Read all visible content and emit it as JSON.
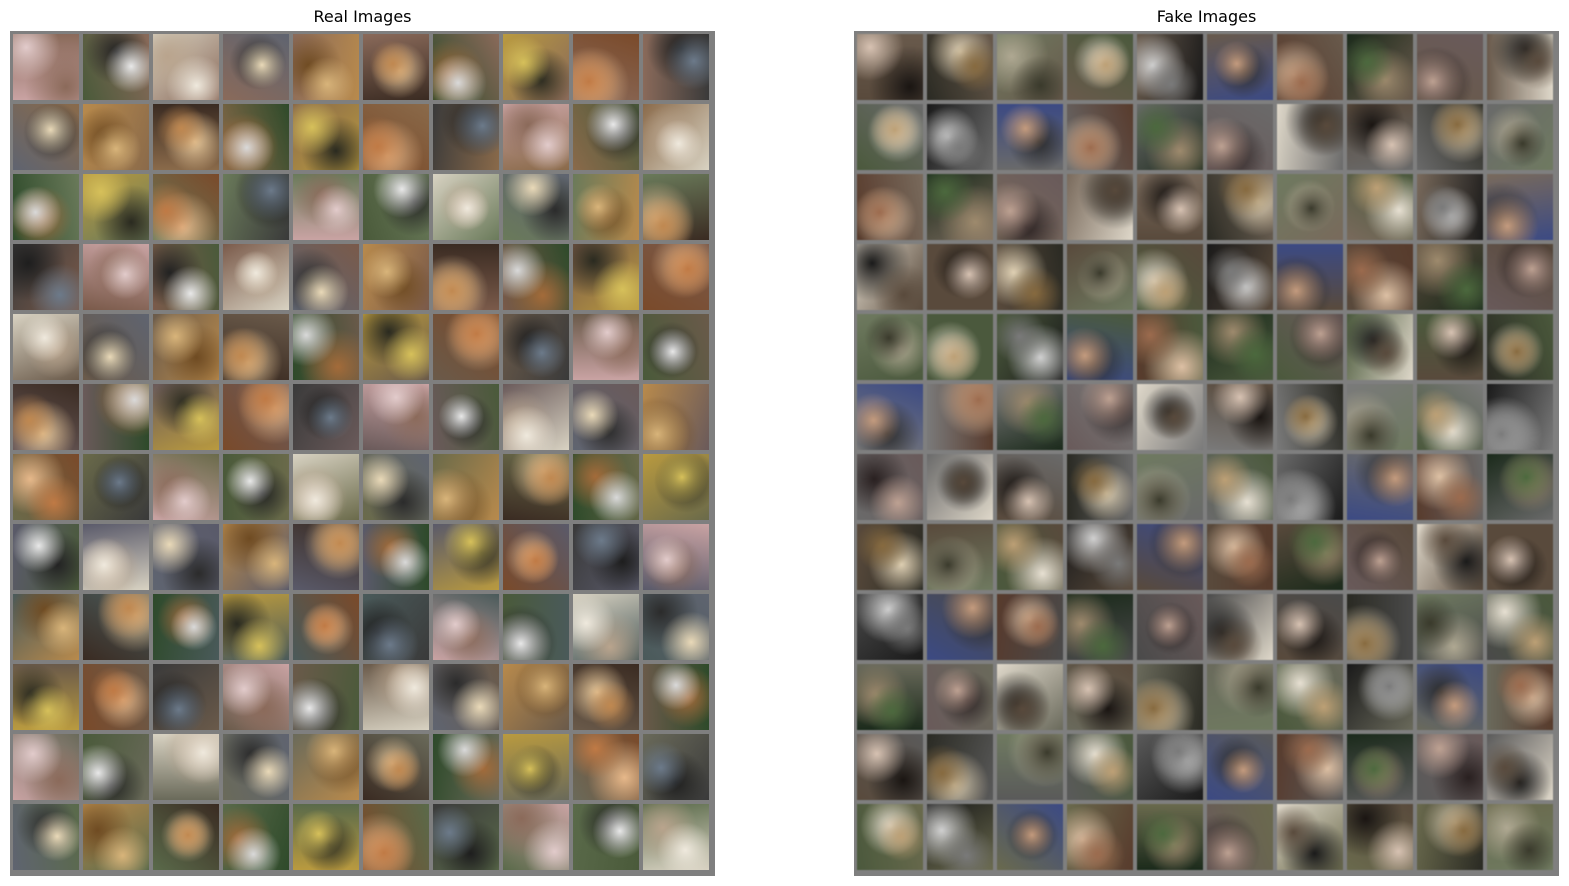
{
  "figure": {
    "background": "#ffffff",
    "grid_frame_color": "#7f7f7f",
    "panels": [
      {
        "id": "real",
        "title": "Real Images",
        "rows": 12,
        "cols": 10,
        "palette": [
          [
            "#c9a3a3",
            "#e2cbcb",
            "#8b6a5a"
          ],
          [
            "#4a5a3a",
            "#e8e8e8",
            "#222222"
          ],
          [
            "#d8d2c2",
            "#efe9dd",
            "#b9a48d"
          ],
          [
            "#5f6470",
            "#e9d9b8",
            "#2b2b2b"
          ],
          [
            "#b88a4c",
            "#d8b47a",
            "#6f4b22"
          ],
          [
            "#3a2b22",
            "#c08850",
            "#e8c89a"
          ],
          [
            "#2e4a2a",
            "#d9d9d9",
            "#a36b3a"
          ],
          [
            "#b99a3f",
            "#d6c05a",
            "#2a2a20"
          ],
          [
            "#7a4a2a",
            "#c07a45",
            "#e6b88a"
          ],
          [
            "#3a3a3a",
            "#6c7a8a",
            "#1e1e1e"
          ]
        ],
        "row_tints": [
          "#8a6a5a",
          "#8a6a4a",
          "#6a7a5a",
          "#7a5a4a",
          "#6a5a4a",
          "#6a5a5a",
          "#6a6a4a",
          "#5a5a6a",
          "#4a5a5a",
          "#6a5a4a",
          "#6a6a5a",
          "#5a6a4a"
        ]
      },
      {
        "id": "fake",
        "title": "Fake Images",
        "rows": 12,
        "cols": 10,
        "palette": [
          [
            "#5a4a3a",
            "#d9c2b0",
            "#1a1512"
          ],
          [
            "#2a2a22",
            "#8a6a3a",
            "#e0d0b0"
          ],
          [
            "#6e7a5e",
            "#3a3a2a",
            "#b0a890"
          ],
          [
            "#4a5a3a",
            "#c0a070",
            "#e8e0d0"
          ],
          [
            "#1a1a1a",
            "#7a7a7a",
            "#d0d0d0"
          ],
          [
            "#3a4a8a",
            "#c89a7a",
            "#2a2a2a"
          ],
          [
            "#5a3a2a",
            "#a06a4a",
            "#e0c0a0"
          ],
          [
            "#1a2a1a",
            "#4a6a3a",
            "#a08a6a"
          ],
          [
            "#6a5a5a",
            "#c0a090",
            "#2a2020"
          ],
          [
            "#e0d8c8",
            "#5a4a3a",
            "#1a1a1a"
          ]
        ],
        "row_tints": [
          "#6a5a4a",
          "#6a6a6a",
          "#7a6a5a",
          "#5a4a3a",
          "#4a5a3a",
          "#7a7a7a",
          "#6a6a6a",
          "#5a4a3a",
          "#4a4a4a",
          "#6a6a5a",
          "#5a5a5a",
          "#6a6a4a"
        ]
      }
    ]
  }
}
